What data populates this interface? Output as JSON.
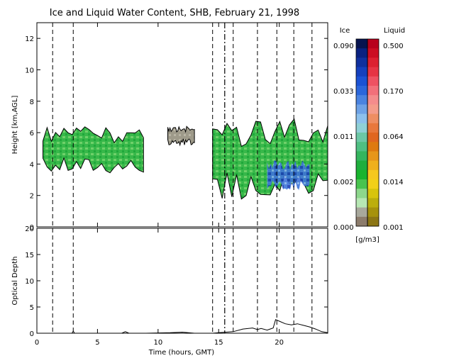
{
  "chart_data": [
    {
      "type": "heatmap",
      "title": "Ice and Liquid Water Content, SHB, February 21, 1998",
      "xlabel": "",
      "ylabel": "Height [km,AGL]",
      "xlim": [
        0,
        24
      ],
      "ylim": [
        0,
        13
      ],
      "xticks": [
        0,
        5,
        10,
        15,
        20
      ],
      "yticks": [
        "0",
        "2",
        "4",
        "6",
        "8",
        "10",
        "12"
      ],
      "dashed_markers_hours": [
        1.3,
        3.0,
        14.5,
        16.2,
        18.2,
        19.8,
        21.2,
        22.7
      ],
      "dash_dot_marker_hours": [
        15.5
      ],
      "cloud_layers": [
        {
          "t_start": 0.5,
          "t_end": 8.8,
          "base_km": 3.4,
          "top_km": 6.4,
          "phase": "mixed"
        },
        {
          "t_start": 10.8,
          "t_end": 13.0,
          "base_km": 5.2,
          "top_km": 6.4,
          "phase": "ice"
        },
        {
          "t_start": 14.5,
          "t_end": 24.0,
          "base_km": 1.7,
          "top_km": 6.9,
          "phase": "mixed"
        }
      ],
      "colorbars": {
        "ice": {
          "label": "Ice",
          "ticks": [
            "0.090",
            "0.033",
            "0.011",
            "0.002",
            "0.000"
          ],
          "colors": [
            "#07134f",
            "#0a2180",
            "#10309e",
            "#1540bd",
            "#1b52d4",
            "#2b66db",
            "#4a83e0",
            "#6ea2e6",
            "#8cc0ec",
            "#8fd0d6",
            "#6cc7a5",
            "#4fbf82",
            "#35b55e",
            "#1fae3d",
            "#18b42e",
            "#48c34e",
            "#8dd78c",
            "#b7e7b4",
            "#a8a89c",
            "#8c7c6c"
          ]
        },
        "liquid": {
          "label": "Liquid",
          "ticks": [
            "0.500",
            "0.170",
            "0.064",
            "0.014",
            "0.001"
          ],
          "colors": [
            "#b8001c",
            "#cc0d22",
            "#dc2030",
            "#e63444",
            "#ee5262",
            "#f2707a",
            "#f48c8c",
            "#f49c8a",
            "#ee8e62",
            "#e8783c",
            "#e06620",
            "#de7a10",
            "#e6961a",
            "#efb01c",
            "#f5c81e",
            "#f2d018",
            "#d8c40c",
            "#bcae0c",
            "#a6920c",
            "#8c7614"
          ]
        },
        "units": "[g/m3]"
      }
    },
    {
      "type": "line",
      "title": "",
      "xlabel": "Time (hours, GMT)",
      "ylabel": "Optical Depth",
      "xlim": [
        0,
        24
      ],
      "ylim": [
        0,
        20
      ],
      "xticks": [
        "0",
        "5",
        "10",
        "15",
        "20"
      ],
      "yticks": [
        "0",
        "5",
        "10",
        "15",
        "20"
      ],
      "series": [
        {
          "x": [
            0,
            2,
            2.9,
            3.0,
            3.1,
            5,
            7,
            7.3,
            7.6,
            9,
            11,
            12,
            13,
            14.5,
            15,
            16.2,
            17,
            17.8,
            18.2,
            18.5,
            19,
            19.5,
            19.7,
            20,
            20.5,
            21,
            21.5,
            22,
            22.5,
            23,
            23.5,
            24
          ],
          "y": [
            0,
            0,
            0,
            0.4,
            0,
            0,
            0,
            0.3,
            0,
            0,
            0.1,
            0.2,
            0,
            0,
            0.1,
            0.3,
            0.8,
            1.0,
            0.7,
            0.9,
            0.6,
            1.0,
            2.6,
            2.3,
            1.8,
            1.6,
            1.8,
            1.5,
            1.2,
            0.8,
            0.3,
            0.1
          ]
        }
      ],
      "dashed_markers_hours": [
        1.3,
        3.0,
        14.5,
        16.2,
        18.2,
        19.8,
        21.2,
        22.7
      ],
      "dash_dot_marker_hours": [
        15.5
      ]
    }
  ]
}
